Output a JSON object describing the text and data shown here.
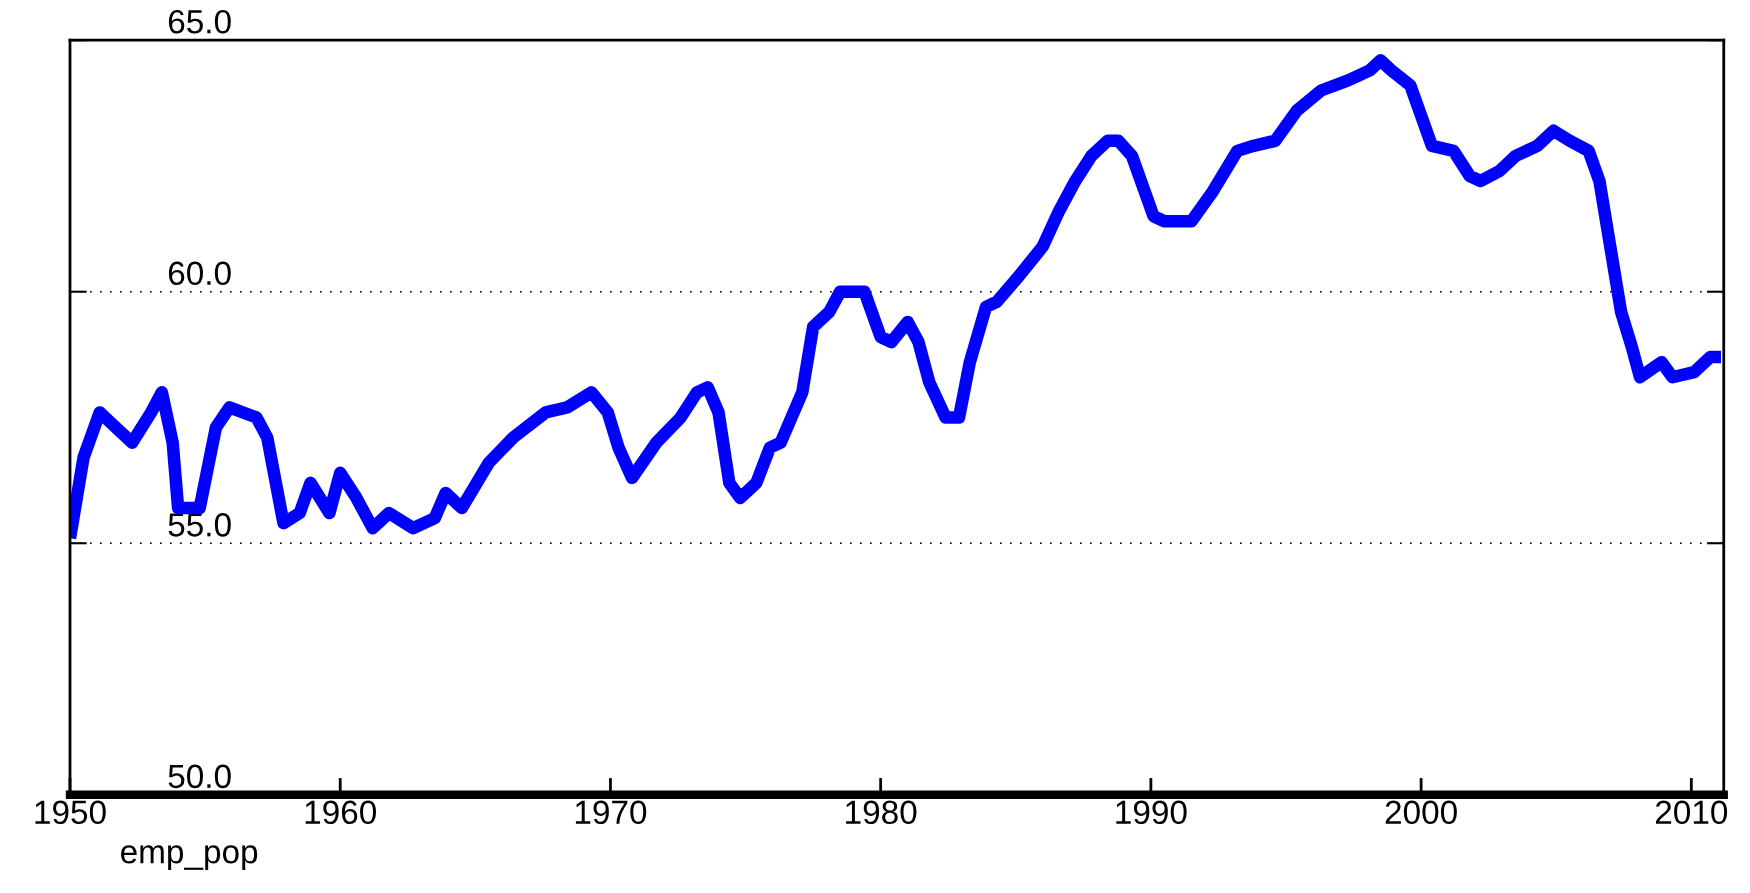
{
  "chart_data": {
    "type": "line",
    "xlabel": "emp_pop",
    "series": [
      {
        "color": "#0000ff",
        "x": [
          1950.0,
          1950.5,
          1951.1,
          1951.5,
          1952.3,
          1953.0,
          1953.4,
          1953.8,
          1954.0,
          1954.8,
          1955.4,
          1955.9,
          1956.9,
          1957.3,
          1957.9,
          1958.5,
          1958.9,
          1959.6,
          1960.0,
          1960.6,
          1961.2,
          1961.8,
          1962.7,
          1963.5,
          1963.9,
          1964.5,
          1965.5,
          1966.4,
          1967.6,
          1968.4,
          1969.3,
          1969.9,
          1970.3,
          1970.8,
          1971.7,
          1972.6,
          1973.2,
          1973.6,
          1974.0,
          1974.4,
          1974.8,
          1975.4,
          1975.9,
          1976.3,
          1977.1,
          1977.5,
          1978.1,
          1978.5,
          1979.4,
          1980.0,
          1980.4,
          1981.0,
          1981.4,
          1981.8,
          1982.4,
          1982.9,
          1983.3,
          1983.9,
          1984.3,
          1985.1,
          1986.0,
          1986.6,
          1987.2,
          1987.8,
          1988.4,
          1988.8,
          1989.3,
          1989.7,
          1990.1,
          1990.5,
          1991.5,
          1992.3,
          1993.2,
          1993.8,
          1994.6,
          1995.4,
          1996.3,
          1997.3,
          1998.1,
          1998.5,
          1998.9,
          1999.6,
          2000.0,
          2000.4,
          2001.2,
          2001.8,
          2002.2,
          2002.9,
          2003.5,
          2004.3,
          2004.9,
          2005.5,
          2006.2,
          2006.6,
          2007.0,
          2007.4,
          2007.8,
          2008.1,
          2008.9,
          2009.3,
          2010.1,
          2010.7,
          2011.1
        ],
        "values": [
          55.1,
          56.7,
          57.6,
          57.4,
          57.0,
          57.6,
          58.0,
          57.0,
          55.7,
          55.7,
          57.3,
          57.7,
          57.5,
          57.1,
          55.4,
          55.6,
          56.2,
          55.6,
          56.4,
          55.9,
          55.3,
          55.6,
          55.3,
          55.5,
          56.0,
          55.7,
          56.6,
          57.1,
          57.6,
          57.7,
          58.0,
          57.6,
          56.9,
          56.3,
          57.0,
          57.5,
          58.0,
          58.1,
          57.6,
          56.2,
          55.9,
          56.2,
          56.9,
          57.0,
          58.0,
          59.3,
          59.6,
          60.0,
          60.0,
          59.1,
          59.0,
          59.4,
          59.0,
          58.2,
          57.5,
          57.5,
          58.6,
          59.7,
          59.8,
          60.3,
          60.9,
          61.6,
          62.2,
          62.7,
          63.0,
          63.0,
          62.7,
          62.1,
          61.5,
          61.4,
          61.4,
          62.0,
          62.8,
          62.9,
          63.0,
          63.6,
          64.0,
          64.2,
          64.4,
          64.6,
          64.4,
          64.1,
          63.5,
          62.9,
          62.8,
          62.3,
          62.2,
          62.4,
          62.7,
          62.9,
          63.2,
          63.0,
          62.8,
          62.2,
          60.9,
          59.6,
          58.9,
          58.3,
          58.6,
          58.3,
          58.4,
          58.7,
          58.7
        ]
      }
    ],
    "xlim": [
      1950,
      2011.2
    ],
    "xticks": [
      1950,
      1960,
      1970,
      1980,
      1990,
      2000,
      2010
    ],
    "ylim": [
      50,
      65
    ],
    "yticks": [
      {
        "value": 50,
        "label": "50.0"
      },
      {
        "value": 55,
        "label": "55.0"
      },
      {
        "value": 60,
        "label": "60.0"
      },
      {
        "value": 65,
        "label": "65.0"
      }
    ],
    "grid": "y",
    "legend": false,
    "marker": "none",
    "line_style": "solid"
  }
}
